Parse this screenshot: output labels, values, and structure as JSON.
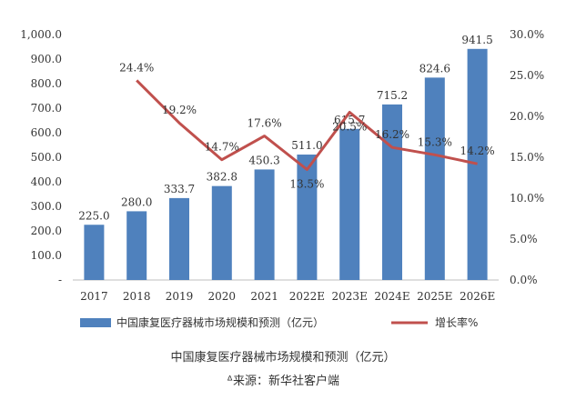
{
  "chart_data": {
    "type": "bar",
    "categories": [
      "2017",
      "2018",
      "2019",
      "2020",
      "2021",
      "2022E",
      "2023E",
      "2024E",
      "2025E",
      "2026E"
    ],
    "series": [
      {
        "name": "中国康复医疗器械市场规模和预测（亿元）",
        "type": "bar",
        "axis": "left",
        "color": "#4f81bd",
        "values": [
          225.0,
          280.0,
          333.7,
          382.8,
          450.3,
          511.0,
          615.7,
          715.2,
          824.6,
          941.5
        ],
        "labels": [
          "225.0",
          "280.0",
          "333.7",
          "382.8",
          "450.3",
          "511.0",
          "615.7",
          "715.2",
          "824.6",
          "941.5"
        ]
      },
      {
        "name": "增长率%",
        "type": "line",
        "axis": "right",
        "color": "#c0504d",
        "values": [
          null,
          24.4,
          19.2,
          14.7,
          17.6,
          13.5,
          20.5,
          16.2,
          15.3,
          14.2
        ],
        "labels": [
          "",
          "24.4%",
          "19.2%",
          "14.7%",
          "17.6%",
          "13.5%",
          "20.5%",
          "16.2%",
          "15.3%",
          "14.2%"
        ]
      }
    ],
    "y_left": {
      "ylim": [
        0,
        1000
      ],
      "ticks": [
        "-",
        "100.0",
        "200.0",
        "300.0",
        "400.0",
        "500.0",
        "600.0",
        "700.0",
        "800.0",
        "900.0",
        "1,000.0"
      ]
    },
    "y_right": {
      "ylim": [
        0,
        30
      ],
      "ticks": [
        "0.0%",
        "5.0%",
        "10.0%",
        "15.0%",
        "20.0%",
        "25.0%",
        "30.0%"
      ]
    },
    "grid": false,
    "legend": "bottom"
  },
  "caption": {
    "title": "中国康复医疗器械市场规模和预测（亿元）",
    "source": "来源：新华社客户端"
  }
}
